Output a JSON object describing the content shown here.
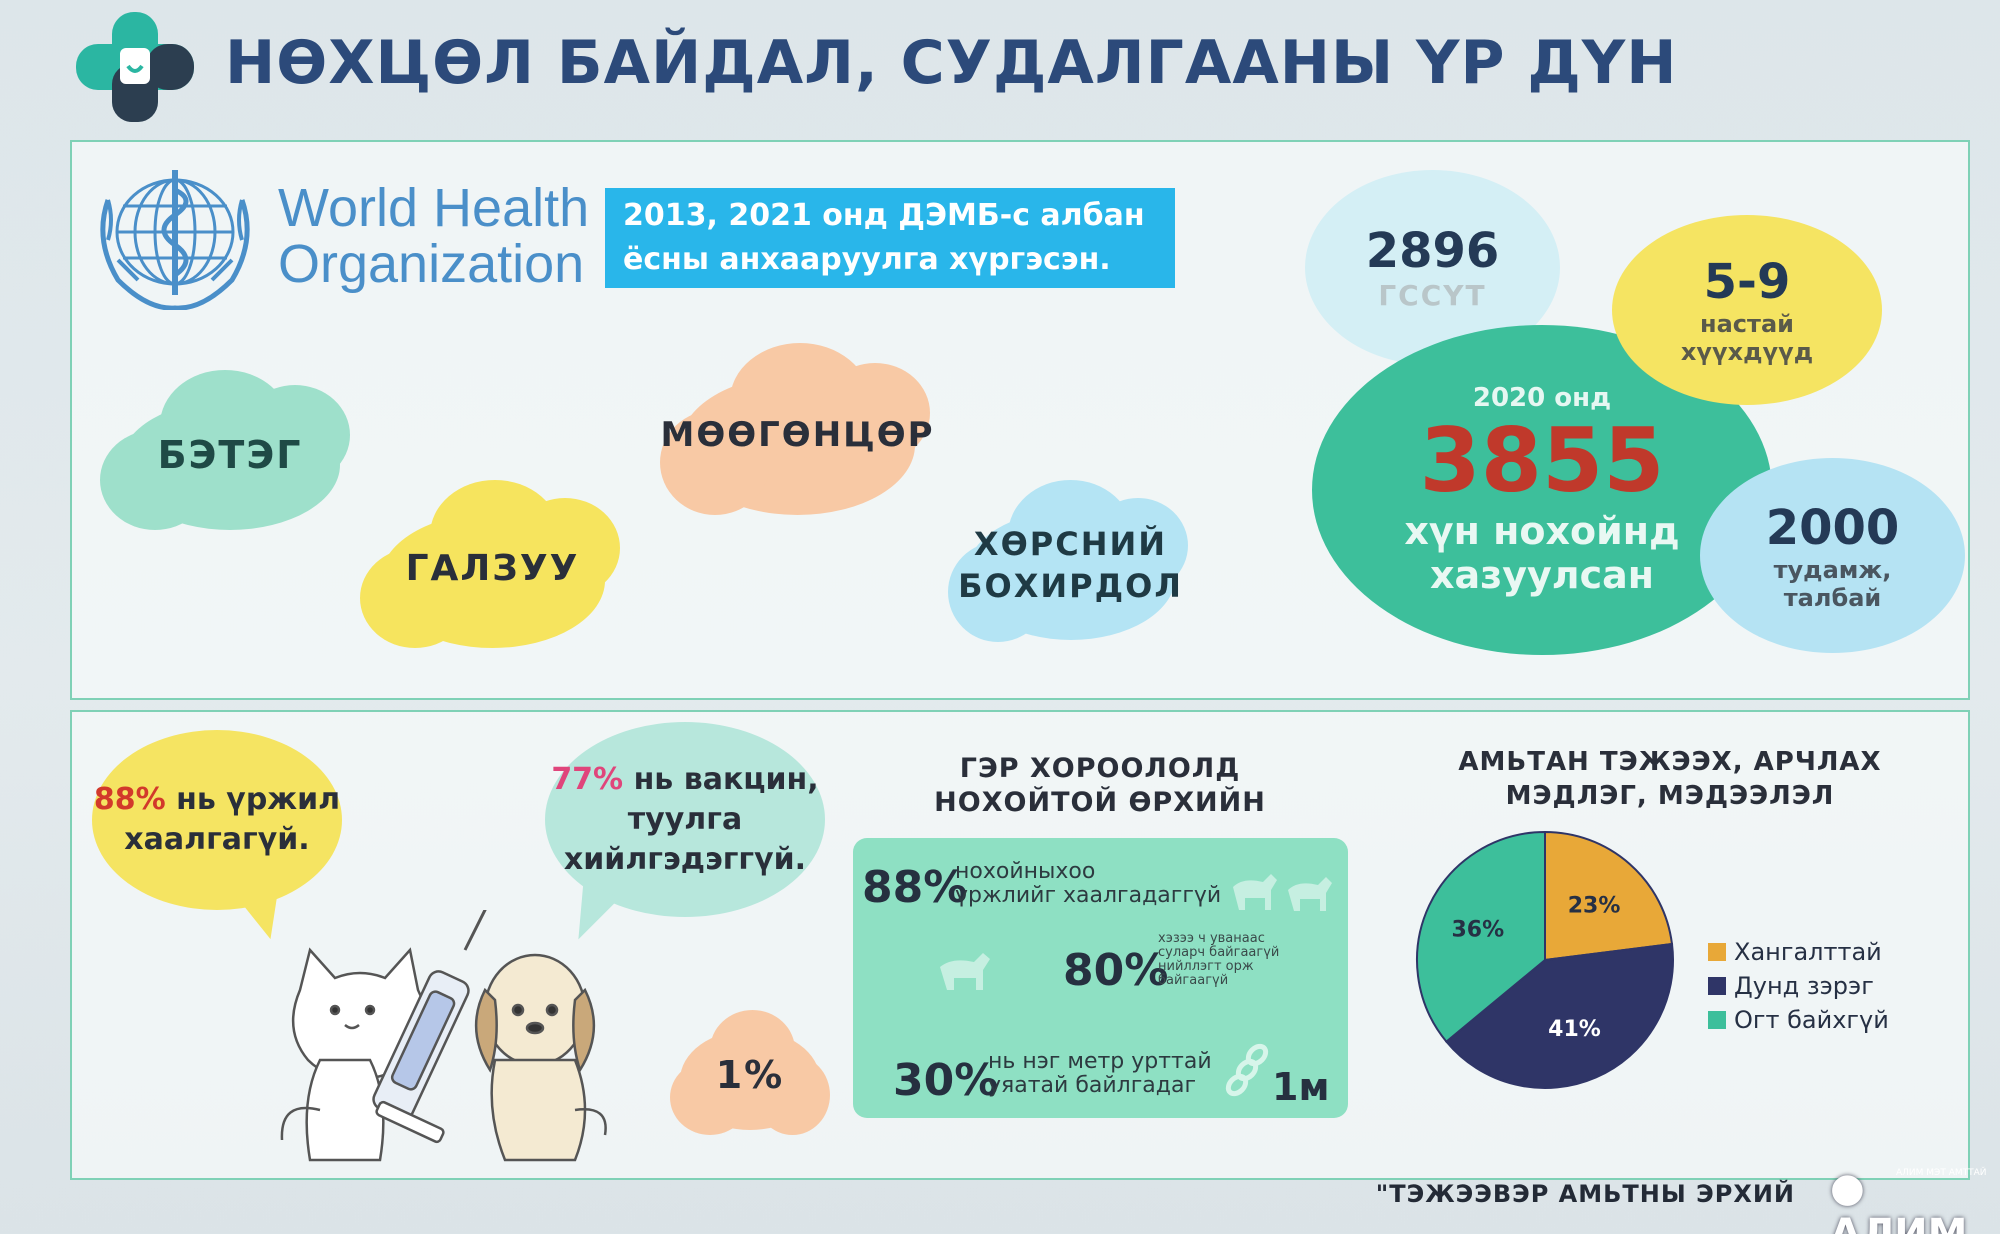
{
  "header": {
    "title": "НӨХЦӨЛ БАЙДАЛ, СУДАЛГААНЫ ҮР ДҮН"
  },
  "who": {
    "line1": "World Health",
    "line2": "Organization",
    "notice_line1": "2013, 2021 онд ДЭМБ-с албан",
    "notice_line2": "ёсны анхааруулга хүргэсэн."
  },
  "clouds": {
    "betег": "БЭТЭГ",
    "galzuu": "ГАЛЗУУ",
    "moogontsor": "МӨӨГӨНЦӨР",
    "horsny_line1": "ХӨРСНИЙ",
    "horsny_line2": "БОХИРДОЛ"
  },
  "stats": {
    "gssut_value": "2896",
    "gssut_label": "ГССҮТ",
    "age_value": "5-9",
    "age_label1": "настай",
    "age_label2": "хүүхдүүд",
    "year": "2020 онд",
    "main_value": "3855",
    "main_label1": "хүн нохойнд",
    "main_label2": "хазуулсан",
    "sites_value": "2000",
    "sites_label1": "тудамж,",
    "sites_label2": "талбай"
  },
  "speech": {
    "s1_pct": "88%",
    "s1_text1": " нь үржил",
    "s1_text2": "хаалгагүй.",
    "s2_pct": "77%",
    "s2_text1": " нь вакцин,",
    "s2_text2": "туулга",
    "s2_text3": "хийлгэдэггүй."
  },
  "one_percent": "1%",
  "ger": {
    "head1": "ГЭР ХОРООЛОЛД",
    "head2": "НОХОЙТОЙ ӨРХИЙН",
    "r1_pct": "88%",
    "r1_text1": "нохойныхоо",
    "r1_text2": "үржлийг хаалгадаггүй",
    "r2_pct": "80%",
    "r2_text1": "хэзээ ч уванаас",
    "r2_text2": "суларч байгаагүй",
    "r2_text3": "нийллэгт орж",
    "r2_text4": "байгаагүй",
    "r3_pct": "30%",
    "r3_text1": "нь нэг метр урттай",
    "r3_text2": "уяатай байлгадаг",
    "r3_unit": "1м"
  },
  "pie_section": {
    "head1": "АМЬТАН ТЭЖЭЭХ, АРЧЛАХ",
    "head2": "МЭДЛЭГ, МЭДЭЭЛЭЛ"
  },
  "chart_data": {
    "type": "pie",
    "title": "АМЬТАН ТЭЖЭЭХ, АРЧЛАХ МЭДЛЭГ, МЭДЭЭЛЭЛ",
    "categories": [
      "Хангалттай",
      "Дунд зэрэг",
      "Огт байхгүй"
    ],
    "values": [
      23,
      41,
      36
    ],
    "labels": [
      "23%",
      "41%",
      "36%"
    ],
    "colors": [
      "#e8a838",
      "#2f3567",
      "#3dbf9b"
    ],
    "legend_position": "right"
  },
  "footer": {
    "text": "\"ТЭЖЭЭВЭР АМЬТНЫ ЭРХИЙ",
    "badge": "АЛИМ",
    "badge_top": "АЛИМ МЭТ АМТТАЙ"
  },
  "colors": {
    "title": "#2c4a7a",
    "notice_bg": "#29b6ea",
    "accent_red": "#c0392b",
    "pink": "#e0457b",
    "teal": "#3dbf9b"
  }
}
